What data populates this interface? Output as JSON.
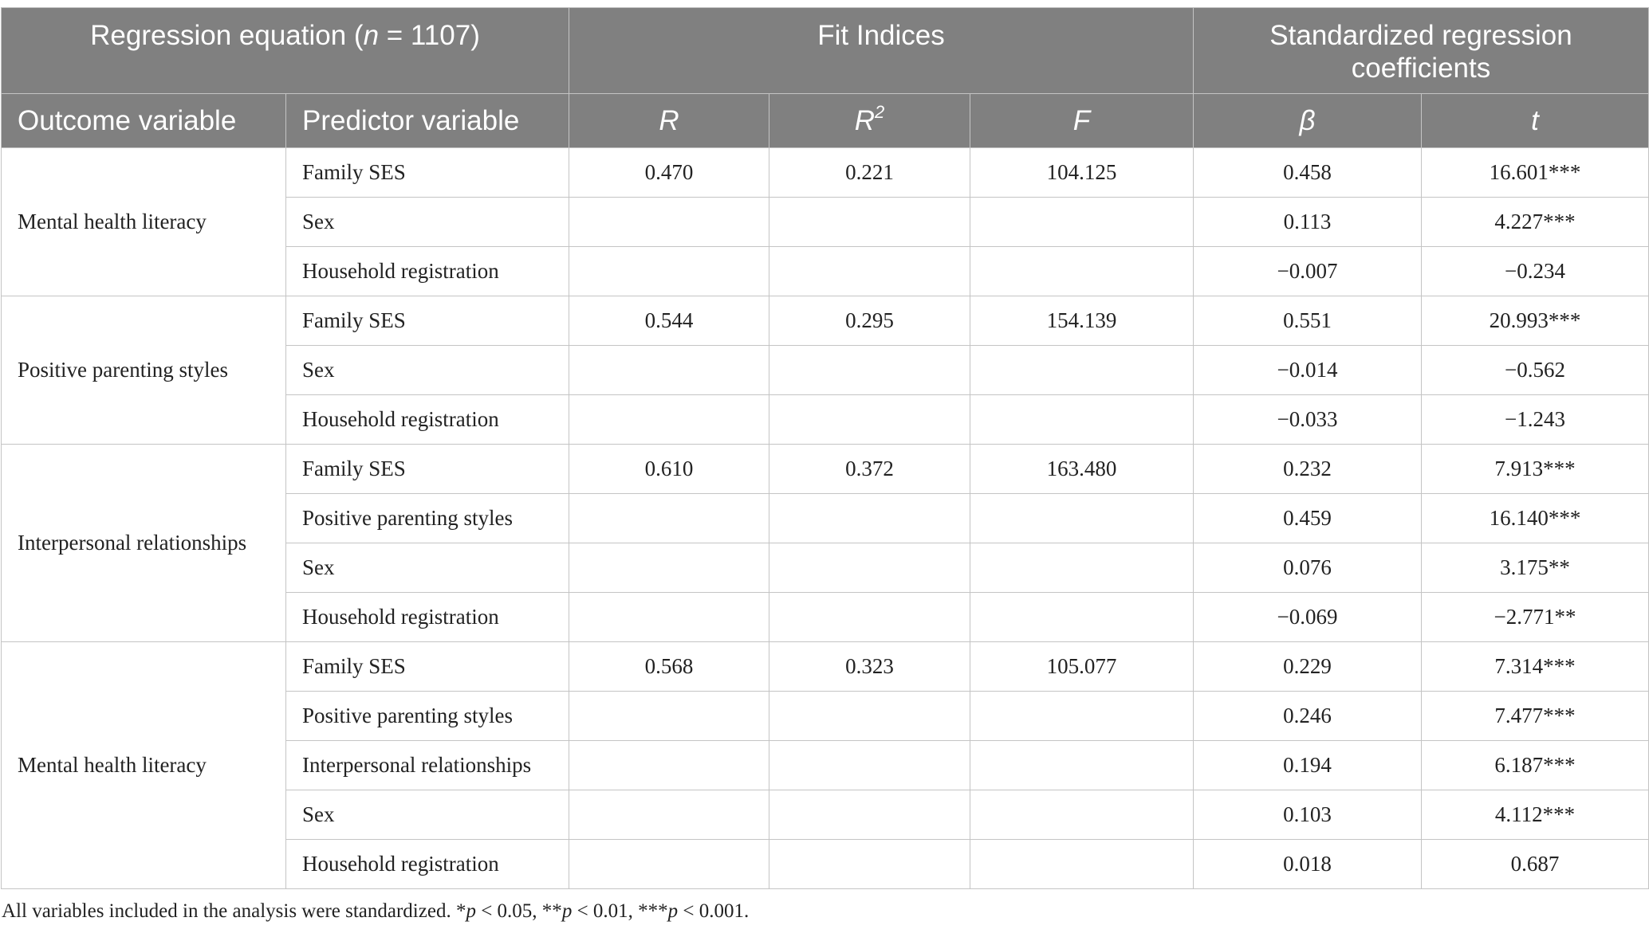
{
  "header": {
    "group1_prefix": "Regression equation (",
    "group1_n": "n",
    "group1_suffix": " = 1107)",
    "group2": "Fit Indices",
    "group3": "Standardized regression coefficients",
    "outcome": "Outcome variable",
    "predictor": "Predictor variable",
    "r": "R",
    "r2_base": "R",
    "r2_sup": "2",
    "f": "F",
    "beta": "β",
    "t": "t"
  },
  "blocks": [
    {
      "outcome": "Mental health literacy",
      "R": "0.470",
      "R2": "0.221",
      "F": "104.125",
      "rows": [
        {
          "predictor": "Family SES",
          "beta": "0.458",
          "t": "16.601***"
        },
        {
          "predictor": "Sex",
          "beta": "0.113",
          "t": "4.227***"
        },
        {
          "predictor": "Household registration",
          "beta": "−0.007",
          "t": "−0.234"
        }
      ]
    },
    {
      "outcome": "Positive parenting styles",
      "R": "0.544",
      "R2": "0.295",
      "F": "154.139",
      "rows": [
        {
          "predictor": "Family SES",
          "beta": "0.551",
          "t": "20.993***"
        },
        {
          "predictor": "Sex",
          "beta": "−0.014",
          "t": "−0.562"
        },
        {
          "predictor": "Household registration",
          "beta": "−0.033",
          "t": "−1.243"
        }
      ]
    },
    {
      "outcome": "Interpersonal relationships",
      "R": "0.610",
      "R2": "0.372",
      "F": "163.480",
      "rows": [
        {
          "predictor": "Family SES",
          "beta": "0.232",
          "t": "7.913***"
        },
        {
          "predictor": "Positive parenting styles",
          "beta": "0.459",
          "t": "16.140***"
        },
        {
          "predictor": "Sex",
          "beta": "0.076",
          "t": "3.175**"
        },
        {
          "predictor": "Household registration",
          "beta": "−0.069",
          "t": "−2.771**"
        }
      ]
    },
    {
      "outcome": "Mental health literacy",
      "R": "0.568",
      "R2": "0.323",
      "F": "105.077",
      "rows": [
        {
          "predictor": "Family SES",
          "beta": "0.229",
          "t": "7.314***"
        },
        {
          "predictor": "Positive parenting styles",
          "beta": "0.246",
          "t": "7.477***"
        },
        {
          "predictor": "Interpersonal relationships",
          "beta": "0.194",
          "t": "6.187***"
        },
        {
          "predictor": "Sex",
          "beta": "0.103",
          "t": "4.112***"
        },
        {
          "predictor": "Household registration",
          "beta": "0.018",
          "t": "0.687"
        }
      ]
    }
  ],
  "footnote": {
    "text1": "All variables included in the analysis were standardized. *",
    "p1": "p",
    "text2": " < 0.05, **",
    "p2": "p",
    "text3": " < 0.01, ***",
    "p3": "p",
    "text4": " < 0.001."
  }
}
